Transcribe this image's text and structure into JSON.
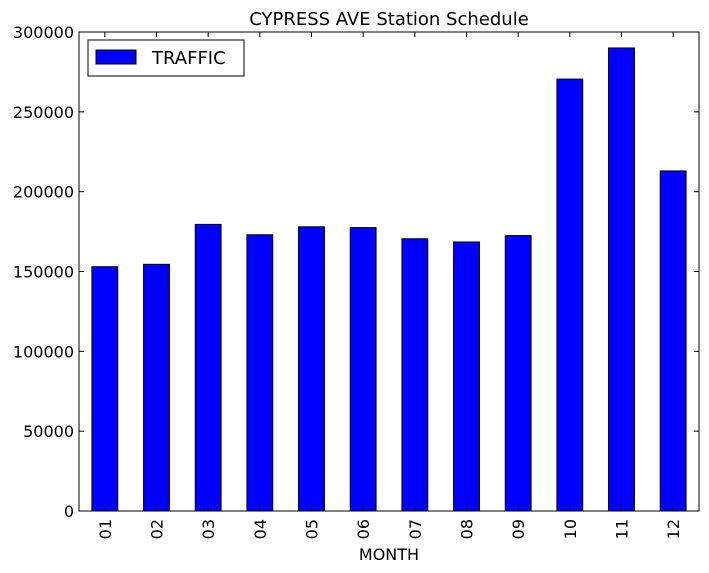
{
  "chart_data": {
    "type": "bar",
    "title": "CYPRESS AVE Station Schedule",
    "xlabel": "MONTH",
    "ylabel": "",
    "categories": [
      "01",
      "02",
      "03",
      "04",
      "05",
      "06",
      "07",
      "08",
      "09",
      "10",
      "11",
      "12"
    ],
    "series": [
      {
        "name": "TRAFFIC",
        "color": "#0000ff",
        "values": [
          153000,
          154500,
          179500,
          173000,
          178000,
          177500,
          170500,
          168500,
          172500,
          270500,
          290000,
          213000
        ]
      }
    ],
    "ylim": [
      0,
      300000
    ],
    "yticks": [
      0,
      50000,
      100000,
      150000,
      200000,
      250000,
      300000
    ],
    "ytick_labels": [
      "0",
      "50000",
      "100000",
      "150000",
      "200000",
      "250000",
      "300000"
    ],
    "grid": false,
    "legend_position": "top-left"
  }
}
